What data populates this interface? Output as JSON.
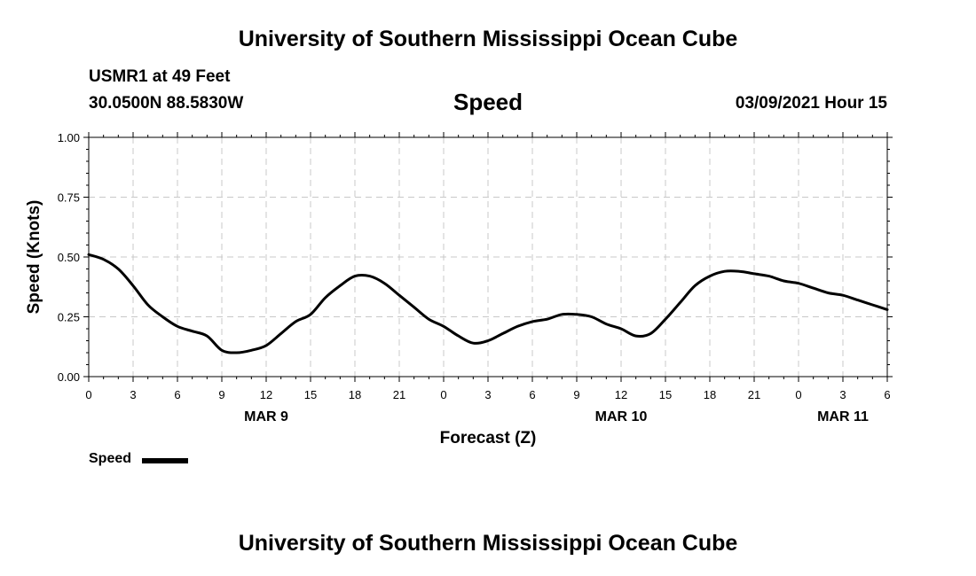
{
  "header": {
    "title": "University of Southern Mississippi Ocean Cube",
    "station": "USMR1 at 49 Feet",
    "coordinates": "30.0500N 88.5830W",
    "variable": "Speed",
    "datetime": "03/09/2021 Hour 15"
  },
  "footer": {
    "title": "University of Southern Mississippi Ocean Cube"
  },
  "legend": {
    "label": "Speed"
  },
  "chart_data": {
    "type": "line",
    "title": "Speed",
    "xlabel": "Forecast (Z)",
    "ylabel": "Speed (Knots)",
    "ylim": [
      0,
      1.0
    ],
    "yticks": [
      "0.00",
      "0.25",
      "0.50",
      "0.75",
      "1.00"
    ],
    "xlim_hours": [
      0,
      54
    ],
    "xtick_labels": [
      "0",
      "3",
      "6",
      "9",
      "12",
      "15",
      "18",
      "21",
      "0",
      "3",
      "6",
      "9",
      "12",
      "15",
      "18",
      "21",
      "0",
      "3",
      "6"
    ],
    "date_labels": [
      {
        "label": "MAR 9",
        "hour": 12
      },
      {
        "label": "MAR 10",
        "hour": 36
      },
      {
        "label": "MAR 11",
        "hour": 51
      }
    ],
    "grid": true,
    "legend_position": "bottom-left",
    "series": [
      {
        "name": "Speed",
        "color": "#000000",
        "x": [
          0,
          1,
          2,
          3,
          4,
          5,
          6,
          7,
          8,
          9,
          10,
          11,
          12,
          13,
          14,
          15,
          16,
          17,
          18,
          19,
          20,
          21,
          22,
          23,
          24,
          25,
          26,
          27,
          28,
          29,
          30,
          31,
          32,
          33,
          34,
          35,
          36,
          37,
          38,
          39,
          40,
          41,
          42,
          43,
          44,
          45,
          46,
          47,
          48,
          49,
          50,
          51,
          52,
          53,
          54
        ],
        "values": [
          0.51,
          0.49,
          0.45,
          0.38,
          0.3,
          0.25,
          0.21,
          0.19,
          0.17,
          0.11,
          0.1,
          0.11,
          0.13,
          0.18,
          0.23,
          0.26,
          0.33,
          0.38,
          0.42,
          0.42,
          0.39,
          0.34,
          0.29,
          0.24,
          0.21,
          0.17,
          0.14,
          0.15,
          0.18,
          0.21,
          0.23,
          0.24,
          0.26,
          0.26,
          0.25,
          0.22,
          0.2,
          0.17,
          0.18,
          0.24,
          0.31,
          0.38,
          0.42,
          0.44,
          0.44,
          0.43,
          0.42,
          0.4,
          0.39,
          0.37,
          0.35,
          0.34,
          0.32,
          0.3,
          0.28
        ]
      }
    ]
  }
}
